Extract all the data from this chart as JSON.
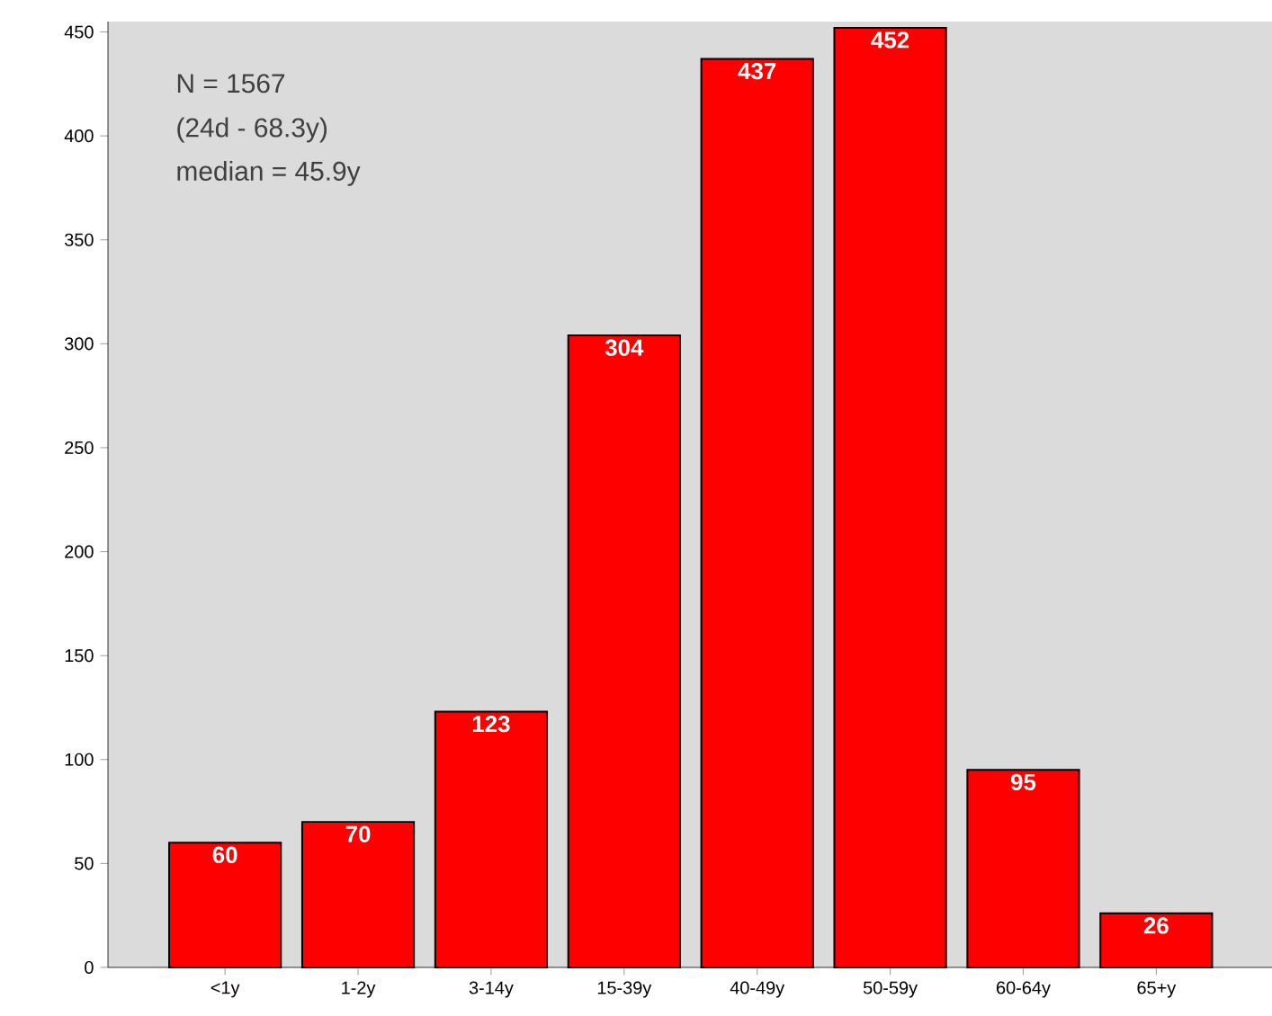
{
  "chart_data": {
    "type": "bar",
    "categories": [
      "<1y",
      "1-2y",
      "3-14y",
      "15-39y",
      "40-49y",
      "50-59y",
      "60-64y",
      "65+y"
    ],
    "values": [
      60,
      70,
      123,
      304,
      437,
      452,
      95,
      26
    ],
    "color": "#ff0000",
    "ylim": [
      0,
      455
    ],
    "yticks": [
      0,
      50,
      100,
      150,
      200,
      250,
      300,
      350,
      400,
      450
    ],
    "data_labels": true,
    "annotations": [
      "N  = 1567",
      "(24d - 68.3y)",
      "median = 45.9y"
    ]
  }
}
